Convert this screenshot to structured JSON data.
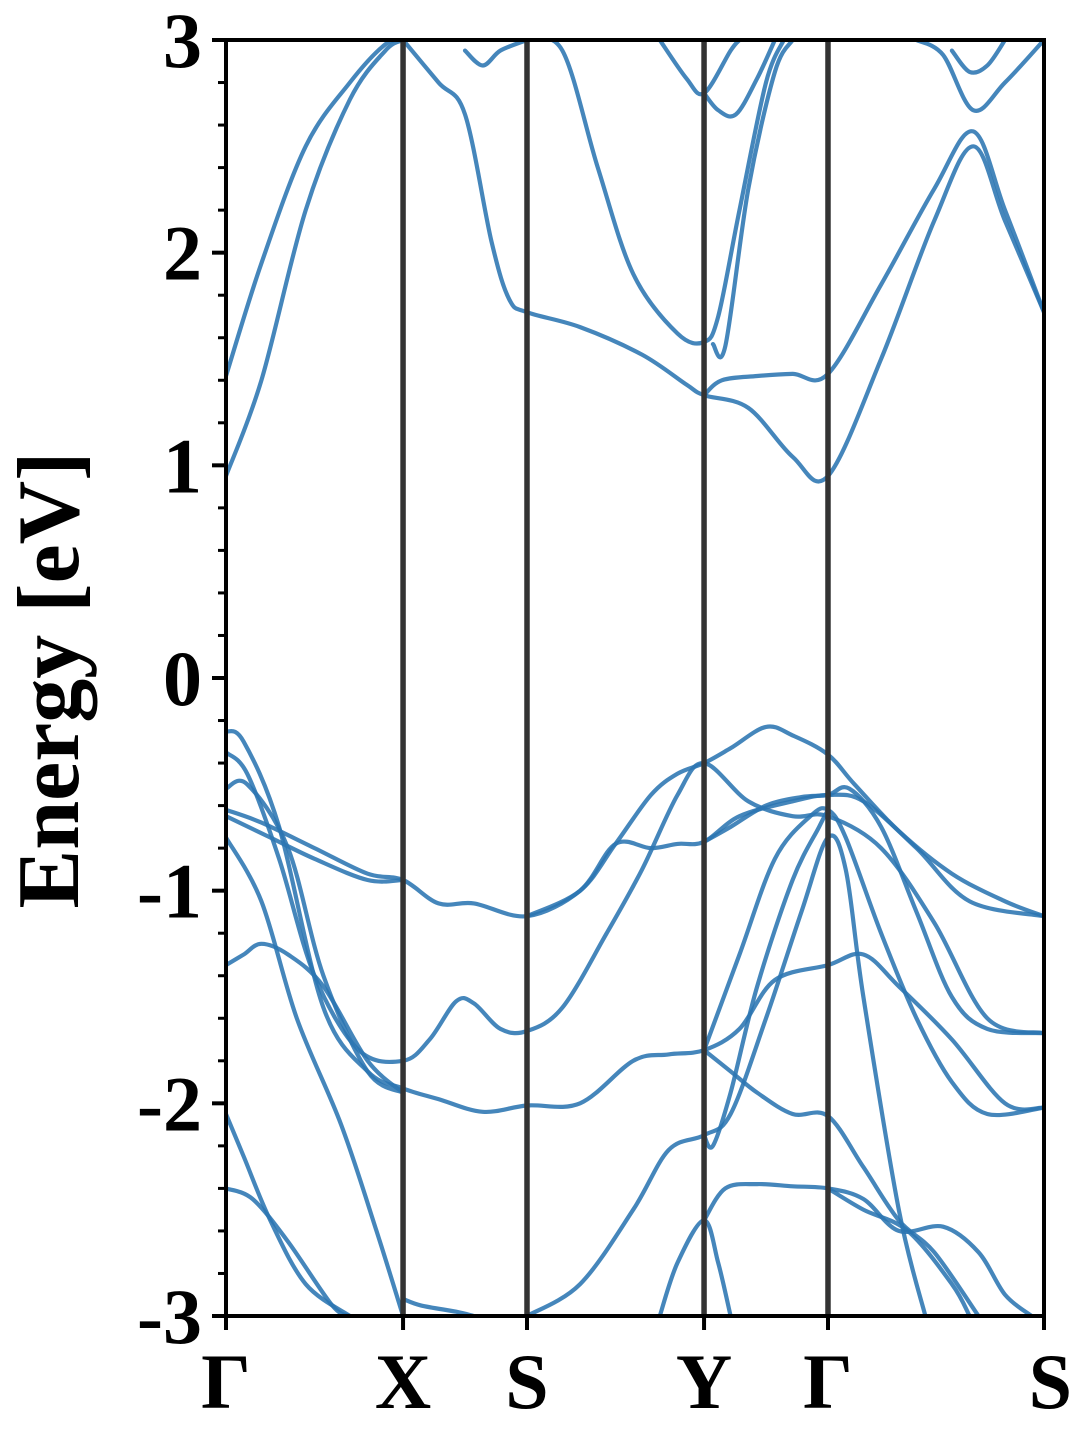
{
  "chart_data": {
    "type": "line",
    "title": "",
    "xlabel": "",
    "ylabel": "Energy [eV]",
    "ylim": [
      -3,
      3
    ],
    "x_ticks": [
      {
        "label": "Γ",
        "pos": 0
      },
      {
        "label": "X",
        "pos": 1
      },
      {
        "label": "S",
        "pos": 1.7
      },
      {
        "label": "Y",
        "pos": 2.7
      },
      {
        "label": "Γ",
        "pos": 3.4
      },
      {
        "label": "S",
        "pos": 4.62
      }
    ],
    "y_ticks": [
      {
        "label": "3",
        "value": 3
      },
      {
        "label": "2",
        "value": 2
      },
      {
        "label": "1",
        "value": 1
      },
      {
        "label": "0",
        "value": 0
      },
      {
        "label": "-1",
        "value": -1
      },
      {
        "label": "-2",
        "value": -2
      },
      {
        "label": "-3",
        "value": -3
      }
    ],
    "y_minor_step": 0.2,
    "grid": false,
    "line_color": "#2b75b2",
    "vline_color": "#333333",
    "series": [
      {
        "points": [
          [
            0,
            1.42
          ],
          [
            0.2,
            1.95
          ],
          [
            0.45,
            2.5
          ],
          [
            0.7,
            2.8
          ],
          [
            0.9,
            2.98
          ],
          [
            1,
            3.0
          ]
        ]
      },
      {
        "points": [
          [
            0,
            0.95
          ],
          [
            0.2,
            1.4
          ],
          [
            0.45,
            2.2
          ],
          [
            0.7,
            2.72
          ],
          [
            0.9,
            2.95
          ],
          [
            1,
            3.0
          ]
        ]
      },
      {
        "points": [
          [
            1,
            3.0
          ],
          [
            1.2,
            2.8
          ],
          [
            1.35,
            2.65
          ],
          [
            1.5,
            2.05
          ],
          [
            1.6,
            1.78
          ],
          [
            1.7,
            1.72
          ],
          [
            2.0,
            1.65
          ],
          [
            2.35,
            1.52
          ],
          [
            2.6,
            1.38
          ],
          [
            2.7,
            1.33
          ],
          [
            2.95,
            1.27
          ],
          [
            3.2,
            1.04
          ],
          [
            3.4,
            0.95
          ],
          [
            3.7,
            1.5
          ],
          [
            4.0,
            2.15
          ],
          [
            4.22,
            2.5
          ],
          [
            4.4,
            2.15
          ],
          [
            4.62,
            1.72
          ]
        ]
      },
      {
        "points": [
          [
            1.35,
            2.95
          ],
          [
            1.45,
            2.88
          ],
          [
            1.55,
            2.95
          ],
          [
            1.7,
            3.0
          ]
        ]
      },
      {
        "points": [
          [
            1.7,
            3.0
          ],
          [
            1.9,
            2.95
          ],
          [
            2.1,
            2.4
          ],
          [
            2.3,
            1.9
          ],
          [
            2.55,
            1.62
          ],
          [
            2.7,
            1.58
          ],
          [
            2.78,
            1.7
          ],
          [
            2.9,
            2.2
          ],
          [
            3.05,
            2.8
          ],
          [
            3.15,
            3.0
          ]
        ]
      },
      {
        "points": [
          [
            2.45,
            3.0
          ],
          [
            2.6,
            2.82
          ],
          [
            2.7,
            2.75
          ],
          [
            2.85,
            2.95
          ],
          [
            2.9,
            3.0
          ]
        ]
      },
      {
        "points": [
          [
            2.7,
            1.33
          ],
          [
            2.8,
            1.4
          ],
          [
            3.0,
            1.42
          ],
          [
            3.2,
            1.43
          ],
          [
            3.4,
            1.43
          ],
          [
            3.7,
            1.85
          ],
          [
            4.0,
            2.3
          ],
          [
            4.22,
            2.57
          ],
          [
            4.4,
            2.2
          ],
          [
            4.62,
            1.72
          ]
        ]
      },
      {
        "points": [
          [
            2.7,
            2.75
          ],
          [
            2.78,
            2.67
          ],
          [
            2.88,
            2.65
          ],
          [
            3.0,
            2.82
          ],
          [
            3.1,
            3.0
          ]
        ]
      },
      {
        "points": [
          [
            2.75,
            1.57
          ],
          [
            2.82,
            1.56
          ],
          [
            2.95,
            2.3
          ],
          [
            3.1,
            2.85
          ],
          [
            3.2,
            3.0
          ]
        ]
      },
      {
        "points": [
          [
            3.9,
            3.0
          ],
          [
            4.05,
            2.93
          ],
          [
            4.22,
            2.67
          ],
          [
            4.4,
            2.8
          ],
          [
            4.62,
            3.0
          ]
        ]
      },
      {
        "points": [
          [
            4.1,
            2.95
          ],
          [
            4.2,
            2.85
          ],
          [
            4.3,
            2.88
          ],
          [
            4.4,
            3.0
          ]
        ]
      },
      {
        "points": [
          [
            0,
            -0.25
          ],
          [
            0.1,
            -0.3
          ],
          [
            0.3,
            -0.7
          ],
          [
            0.55,
            -1.55
          ],
          [
            0.8,
            -1.85
          ],
          [
            1,
            -1.93
          ],
          [
            1.2,
            -1.98
          ],
          [
            1.45,
            -2.04
          ],
          [
            1.7,
            -2.01
          ],
          [
            2.0,
            -2.0
          ],
          [
            2.3,
            -1.8
          ],
          [
            2.5,
            -1.77
          ],
          [
            2.7,
            -1.75
          ],
          [
            2.9,
            -1.65
          ],
          [
            3.1,
            -1.42
          ],
          [
            3.4,
            -1.35
          ],
          [
            3.6,
            -1.3
          ],
          [
            3.8,
            -1.45
          ],
          [
            4.1,
            -1.7
          ],
          [
            4.4,
            -2.0
          ],
          [
            4.62,
            -2.02
          ]
        ]
      },
      {
        "points": [
          [
            0,
            -0.35
          ],
          [
            0.12,
            -0.45
          ],
          [
            0.3,
            -0.85
          ],
          [
            0.5,
            -1.4
          ],
          [
            0.75,
            -1.75
          ],
          [
            1,
            -1.8
          ],
          [
            1.15,
            -1.7
          ],
          [
            1.3,
            -1.52
          ],
          [
            1.4,
            -1.53
          ],
          [
            1.55,
            -1.65
          ],
          [
            1.7,
            -1.66
          ],
          [
            1.9,
            -1.55
          ],
          [
            2.15,
            -1.2
          ],
          [
            2.35,
            -0.9
          ],
          [
            2.55,
            -0.55
          ],
          [
            2.7,
            -0.4
          ],
          [
            2.95,
            -0.58
          ],
          [
            3.2,
            -0.65
          ],
          [
            3.4,
            -0.65
          ],
          [
            3.7,
            -0.8
          ],
          [
            4.0,
            -1.15
          ],
          [
            4.3,
            -1.6
          ],
          [
            4.62,
            -1.67
          ]
        ]
      },
      {
        "points": [
          [
            0,
            -0.52
          ],
          [
            0.12,
            -0.5
          ],
          [
            0.35,
            -0.8
          ],
          [
            0.55,
            -1.4
          ],
          [
            0.8,
            -1.85
          ],
          [
            1,
            -1.95
          ]
        ]
      },
      {
        "points": [
          [
            0,
            -0.62
          ],
          [
            0.2,
            -0.68
          ],
          [
            0.5,
            -0.8
          ],
          [
            0.8,
            -0.92
          ],
          [
            1,
            -0.95
          ],
          [
            1.2,
            -1.06
          ],
          [
            1.4,
            -1.06
          ],
          [
            1.7,
            -1.12
          ],
          [
            2.0,
            -1.0
          ],
          [
            2.2,
            -0.78
          ],
          [
            2.4,
            -0.55
          ],
          [
            2.55,
            -0.45
          ],
          [
            2.7,
            -0.4
          ],
          [
            2.85,
            -0.33
          ],
          [
            3.05,
            -0.23
          ],
          [
            3.2,
            -0.27
          ],
          [
            3.4,
            -0.36
          ],
          [
            3.55,
            -0.5
          ],
          [
            3.8,
            -0.72
          ],
          [
            4.1,
            -0.92
          ],
          [
            4.4,
            -1.05
          ],
          [
            4.62,
            -1.12
          ]
        ]
      },
      {
        "points": [
          [
            0,
            -0.65
          ],
          [
            0.25,
            -0.75
          ],
          [
            0.5,
            -0.85
          ],
          [
            0.8,
            -0.95
          ],
          [
            1,
            -0.95
          ]
        ]
      },
      {
        "points": [
          [
            0,
            -0.75
          ],
          [
            0.2,
            -1.05
          ],
          [
            0.4,
            -1.6
          ],
          [
            0.65,
            -2.1
          ],
          [
            0.85,
            -2.6
          ],
          [
            1,
            -3.0
          ]
        ]
      },
      {
        "points": [
          [
            0,
            -1.35
          ],
          [
            0.1,
            -1.3
          ],
          [
            0.2,
            -1.25
          ],
          [
            0.35,
            -1.3
          ],
          [
            0.55,
            -1.45
          ],
          [
            0.8,
            -1.8
          ],
          [
            1,
            -1.95
          ]
        ]
      },
      {
        "points": [
          [
            1.7,
            -1.12
          ],
          [
            2.0,
            -1.0
          ],
          [
            2.2,
            -0.78
          ],
          [
            2.4,
            -0.8
          ],
          [
            2.55,
            -0.78
          ],
          [
            2.7,
            -0.77
          ],
          [
            2.9,
            -0.65
          ],
          [
            3.2,
            -0.58
          ],
          [
            3.4,
            -0.55
          ],
          [
            3.6,
            -0.58
          ],
          [
            3.9,
            -0.8
          ],
          [
            4.2,
            -1.05
          ],
          [
            4.62,
            -1.12
          ]
        ]
      },
      {
        "points": [
          [
            2.7,
            -0.77
          ],
          [
            2.85,
            -0.7
          ],
          [
            3.05,
            -0.6
          ],
          [
            3.25,
            -0.56
          ],
          [
            3.4,
            -0.55
          ],
          [
            3.52,
            -0.52
          ],
          [
            3.7,
            -0.7
          ],
          [
            3.9,
            -1.1
          ],
          [
            4.1,
            -1.5
          ],
          [
            4.3,
            -1.65
          ],
          [
            4.62,
            -1.67
          ]
        ]
      },
      {
        "points": [
          [
            2.7,
            -1.75
          ],
          [
            2.9,
            -1.3
          ],
          [
            3.1,
            -0.85
          ],
          [
            3.3,
            -0.65
          ],
          [
            3.4,
            -0.62
          ],
          [
            3.5,
            -0.75
          ],
          [
            3.7,
            -1.2
          ],
          [
            3.9,
            -1.6
          ],
          [
            4.1,
            -1.9
          ],
          [
            4.3,
            -2.05
          ],
          [
            4.62,
            -2.02
          ]
        ]
      },
      {
        "points": [
          [
            0,
            -2.05
          ],
          [
            0.1,
            -2.25
          ],
          [
            0.25,
            -2.55
          ],
          [
            0.45,
            -2.85
          ],
          [
            0.7,
            -3.0
          ]
        ]
      },
      {
        "points": [
          [
            0,
            -2.4
          ],
          [
            0.15,
            -2.45
          ],
          [
            0.35,
            -2.65
          ],
          [
            0.6,
            -2.95
          ],
          [
            0.7,
            -3.0
          ]
        ]
      },
      {
        "points": [
          [
            1,
            -2.92
          ],
          [
            1.1,
            -2.95
          ],
          [
            1.3,
            -2.98
          ],
          [
            1.4,
            -3.0
          ]
        ]
      },
      {
        "points": [
          [
            1.7,
            -3.0
          ],
          [
            2.0,
            -2.85
          ],
          [
            2.3,
            -2.5
          ],
          [
            2.5,
            -2.22
          ],
          [
            2.7,
            -2.15
          ],
          [
            2.85,
            -2.05
          ],
          [
            3.05,
            -1.6
          ],
          [
            3.25,
            -1.1
          ],
          [
            3.4,
            -0.75
          ],
          [
            3.5,
            -0.9
          ],
          [
            3.6,
            -1.5
          ],
          [
            3.8,
            -2.5
          ],
          [
            3.95,
            -3.0
          ]
        ]
      },
      {
        "points": [
          [
            2.45,
            -3.0
          ],
          [
            2.55,
            -2.75
          ],
          [
            2.7,
            -2.55
          ],
          [
            2.78,
            -2.75
          ],
          [
            2.85,
            -3.0
          ]
        ]
      },
      {
        "points": [
          [
            2.7,
            -2.15
          ],
          [
            2.75,
            -2.2
          ],
          [
            2.85,
            -1.95
          ],
          [
            3.0,
            -1.45
          ],
          [
            3.2,
            -0.95
          ],
          [
            3.35,
            -0.7
          ],
          [
            3.4,
            -0.62
          ]
        ]
      },
      {
        "points": [
          [
            2.7,
            -1.75
          ],
          [
            2.85,
            -1.85
          ],
          [
            3.0,
            -1.95
          ],
          [
            3.2,
            -2.05
          ],
          [
            3.4,
            -2.06
          ],
          [
            3.6,
            -2.3
          ],
          [
            3.8,
            -2.55
          ],
          [
            4.0,
            -2.7
          ],
          [
            4.25,
            -3.0
          ]
        ]
      },
      {
        "points": [
          [
            2.7,
            -2.55
          ],
          [
            2.82,
            -2.4
          ],
          [
            3.0,
            -2.38
          ],
          [
            3.2,
            -2.39
          ],
          [
            3.4,
            -2.4
          ],
          [
            3.6,
            -2.45
          ],
          [
            3.8,
            -2.6
          ],
          [
            4.05,
            -2.58
          ],
          [
            4.25,
            -2.7
          ],
          [
            4.4,
            -2.9
          ],
          [
            4.55,
            -3.0
          ]
        ]
      },
      {
        "points": [
          [
            3.4,
            -2.4
          ],
          [
            3.6,
            -2.5
          ],
          [
            3.85,
            -2.6
          ],
          [
            4.1,
            -2.85
          ],
          [
            4.2,
            -3.0
          ]
        ]
      }
    ]
  }
}
